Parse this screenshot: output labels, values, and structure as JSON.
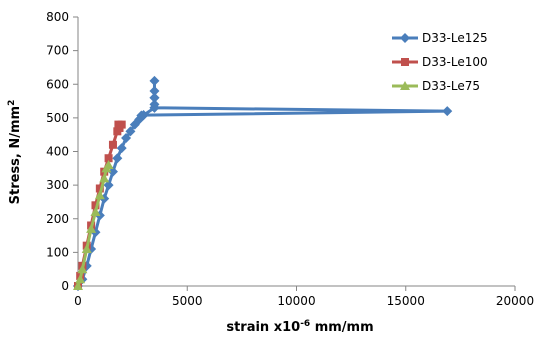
{
  "chart_data": {
    "type": "line",
    "xlabel": "strain x10",
    "xlabel_sup": "-6",
    "xlabel_suffix": " mm/mm",
    "ylabel": "Stress, N/mm",
    "ylabel_sup": "2",
    "xlim": [
      0,
      20000
    ],
    "ylim": [
      0,
      800
    ],
    "x_ticks": [
      0,
      5000,
      10000,
      15000,
      20000
    ],
    "y_ticks": [
      0,
      100,
      200,
      300,
      400,
      500,
      600,
      700,
      800
    ],
    "grid": false,
    "legend_position": "top-right",
    "series": [
      {
        "name": "D33-Le125",
        "color": "#4a7ebb",
        "marker": "diamond",
        "points": [
          [
            0,
            0
          ],
          [
            200,
            20
          ],
          [
            400,
            60
          ],
          [
            600,
            110
          ],
          [
            800,
            160
          ],
          [
            1000,
            210
          ],
          [
            1200,
            260
          ],
          [
            1400,
            300
          ],
          [
            1600,
            340
          ],
          [
            1800,
            380
          ],
          [
            2000,
            410
          ],
          [
            2200,
            440
          ],
          [
            2400,
            460
          ],
          [
            2600,
            480
          ],
          [
            2800,
            495
          ],
          [
            3000,
            508
          ],
          [
            3500,
            530
          ],
          [
            3500,
            540
          ],
          [
            3500,
            560
          ],
          [
            3500,
            580
          ],
          [
            3500,
            610
          ],
          [
            3500,
            560
          ],
          [
            3500,
            530
          ],
          [
            16900,
            520
          ],
          [
            3000,
            508
          ],
          [
            2900,
            507
          ]
        ]
      },
      {
        "name": "D33-Le100",
        "color": "#c0504d",
        "marker": "square",
        "points": [
          [
            0,
            0
          ],
          [
            100,
            30
          ],
          [
            200,
            60
          ],
          [
            400,
            120
          ],
          [
            600,
            180
          ],
          [
            800,
            240
          ],
          [
            1000,
            290
          ],
          [
            1200,
            340
          ],
          [
            1400,
            380
          ],
          [
            1600,
            420
          ],
          [
            1800,
            460
          ],
          [
            1900,
            470
          ],
          [
            2000,
            480
          ],
          [
            1850,
            480
          ]
        ]
      },
      {
        "name": "D33-Le75",
        "color": "#9bbb59",
        "marker": "triangle",
        "points": [
          [
            0,
            0
          ],
          [
            100,
            20
          ],
          [
            200,
            50
          ],
          [
            400,
            110
          ],
          [
            600,
            170
          ],
          [
            800,
            220
          ],
          [
            1000,
            270
          ],
          [
            1200,
            320
          ],
          [
            1300,
            350
          ],
          [
            1400,
            360
          ]
        ]
      }
    ]
  }
}
